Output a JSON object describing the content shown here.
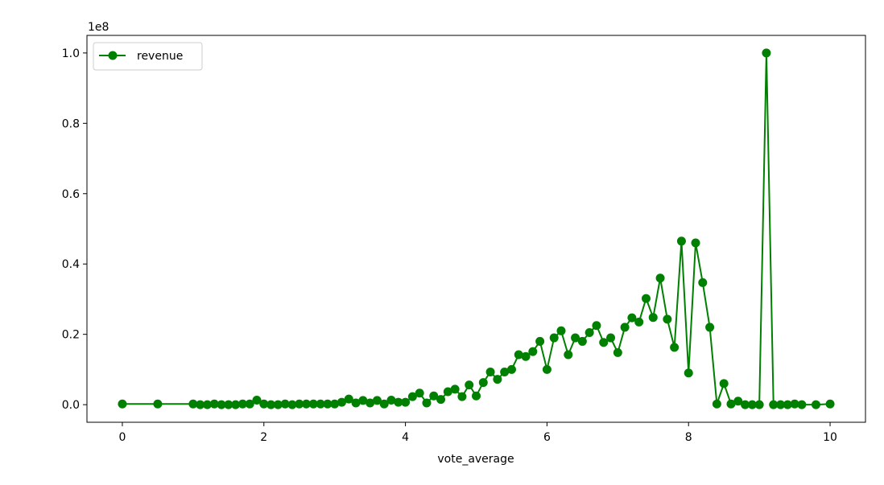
{
  "chart_data": {
    "type": "line",
    "title": "",
    "xlabel": "vote_average",
    "ylabel": "",
    "y_offset_text": "1e8",
    "xlim": [
      -0.5,
      10.5
    ],
    "ylim": [
      -0.05,
      1.05
    ],
    "y_unit_multiplier": 100000000,
    "xticks": [
      0,
      2,
      4,
      6,
      8,
      10
    ],
    "xtick_labels": [
      "0",
      "2",
      "4",
      "6",
      "8",
      "10"
    ],
    "yticks": [
      0.0,
      0.2,
      0.4,
      0.6,
      0.8,
      1.0
    ],
    "ytick_labels": [
      "0.0",
      "0.2",
      "0.4",
      "0.6",
      "0.8",
      "1.0"
    ],
    "grid": false,
    "legend_position": "top-left",
    "series": [
      {
        "name": "revenue",
        "color": "#008000",
        "marker": "circle",
        "x": [
          0,
          0.5,
          1.0,
          1.1,
          1.2,
          1.3,
          1.4,
          1.5,
          1.6,
          1.7,
          1.8,
          1.9,
          2.0,
          2.1,
          2.2,
          2.3,
          2.4,
          2.5,
          2.6,
          2.7,
          2.8,
          2.9,
          3.0,
          3.1,
          3.2,
          3.3,
          3.4,
          3.5,
          3.6,
          3.7,
          3.8,
          3.9,
          4.0,
          4.1,
          4.2,
          4.3,
          4.4,
          4.5,
          4.6,
          4.7,
          4.8,
          4.9,
          5.0,
          5.1,
          5.2,
          5.3,
          5.4,
          5.5,
          5.6,
          5.7,
          5.8,
          5.9,
          6.0,
          6.1,
          6.2,
          6.3,
          6.4,
          6.5,
          6.6,
          6.7,
          6.8,
          6.9,
          7.0,
          7.1,
          7.2,
          7.3,
          7.4,
          7.5,
          7.6,
          7.7,
          7.8,
          7.9,
          8.0,
          8.1,
          8.2,
          8.3,
          8.4,
          8.5,
          8.6,
          8.7,
          8.8,
          8.9,
          9.0,
          9.1,
          9.2,
          9.3,
          9.4,
          9.5,
          9.6,
          9.8,
          10.0
        ],
        "y": [
          0.002,
          0.002,
          0.002,
          0.0,
          0.0,
          0.002,
          0.0,
          0.0,
          0.0,
          0.002,
          0.002,
          0.013,
          0.002,
          0.0,
          0.0,
          0.002,
          0.0,
          0.002,
          0.002,
          0.002,
          0.002,
          0.002,
          0.002,
          0.007,
          0.016,
          0.005,
          0.012,
          0.005,
          0.012,
          0.002,
          0.013,
          0.007,
          0.007,
          0.023,
          0.033,
          0.005,
          0.025,
          0.015,
          0.037,
          0.044,
          0.023,
          0.056,
          0.025,
          0.063,
          0.093,
          0.072,
          0.093,
          0.1,
          0.142,
          0.137,
          0.151,
          0.18,
          0.1,
          0.19,
          0.21,
          0.142,
          0.19,
          0.18,
          0.205,
          0.225,
          0.177,
          0.19,
          0.148,
          0.22,
          0.247,
          0.235,
          0.302,
          0.248,
          0.36,
          0.243,
          0.163,
          0.465,
          0.09,
          0.46,
          0.347,
          0.22,
          0.002,
          0.06,
          0.002,
          0.01,
          0.0,
          0.0,
          0.0,
          1.0,
          0.0,
          0.0,
          0.0,
          0.002,
          0.0,
          0.0,
          0.002
        ]
      }
    ]
  }
}
